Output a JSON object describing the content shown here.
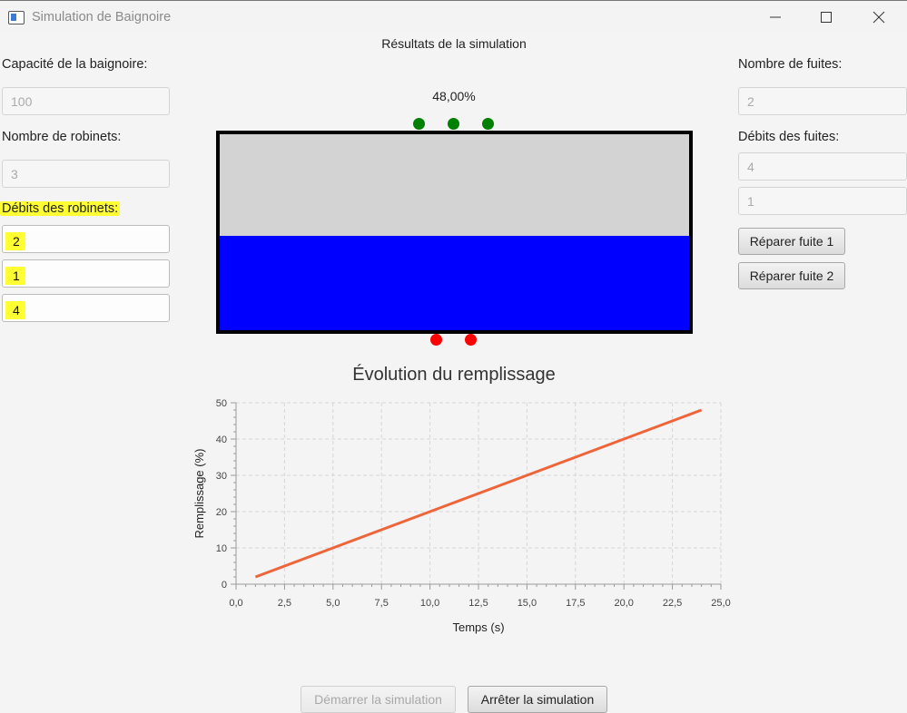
{
  "window": {
    "title": "Simulation de Baignoire"
  },
  "left": {
    "capacity_label": "Capacité de la baignoire:",
    "capacity_value": "100",
    "taps_label": "Nombre de robinets:",
    "taps_value": "3",
    "tap_rates_label": "Débits des robinets:",
    "tap_rates": [
      "2",
      "1",
      "4"
    ]
  },
  "right": {
    "leaks_label": "Nombre de fuites:",
    "leaks_value": "2",
    "leak_rates_label": "Débits des fuites:",
    "leak_rates": [
      "4",
      "1"
    ],
    "repair_buttons": [
      "Réparer fuite 1",
      "Réparer fuite 2"
    ]
  },
  "simulation": {
    "results_title": "Résultats de la simulation",
    "fill_text": "48,00%",
    "fill_fraction": 0.48,
    "tap_count": 3,
    "leak_count": 2,
    "colors": {
      "water": "#0000ff",
      "empty": "#d3d3d3",
      "tap": "#008000",
      "leak": "#ff0000"
    }
  },
  "chart_data": {
    "type": "line",
    "title": "Évolution du remplissage",
    "xlabel": "Temps (s)",
    "ylabel": "Remplissage (%)",
    "xlim": [
      0,
      25
    ],
    "ylim": [
      0,
      50
    ],
    "x_ticks": [
      "0,0",
      "2,5",
      "5,0",
      "7,5",
      "10,0",
      "12,5",
      "15,0",
      "17,5",
      "20,0",
      "22,5",
      "25,0"
    ],
    "y_ticks": [
      "0",
      "10",
      "20",
      "30",
      "40",
      "50"
    ],
    "grid": true,
    "series": [
      {
        "color": "#f0643a",
        "x": [
          1,
          2,
          3,
          4,
          5,
          6,
          7,
          8,
          9,
          10,
          11,
          12,
          13,
          14,
          15,
          16,
          17,
          18,
          19,
          20,
          21,
          22,
          23,
          24
        ],
        "y": [
          2,
          4,
          6,
          8,
          10,
          12,
          14,
          16,
          18,
          20,
          22,
          24,
          26,
          28,
          30,
          32,
          34,
          36,
          38,
          40,
          42,
          44,
          46,
          48
        ]
      }
    ]
  },
  "footer": {
    "start_label": "Démarrer la simulation",
    "stop_label": "Arrêter la simulation"
  }
}
